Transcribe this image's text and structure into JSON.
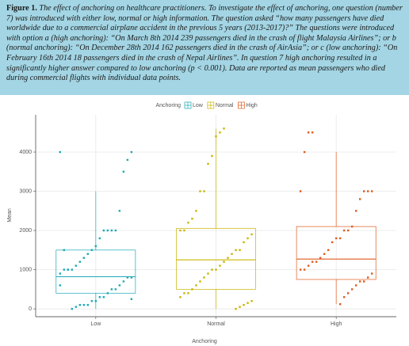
{
  "caption": {
    "label": "Figure 1.",
    "text": "The effect of anchoring on healthcare practitioners. To investigate the effect of anchoring, one question (number 7) was introduced with either low, normal or high information. The question asked “how many passengers have died worldwide due to a commercial airplane accident in the previous 5 years (2013-2017)?” The questions were introduced with option a (high anchoring): “On March 8th 2014 239 passengers died in the crash of flight Malaysia Airlines”; or b (normal anchoring): “On December 28th 2014 162 passengers died in the crash of AirAsia”; or c (low anchoring): “On February 16th 2014 18 passengers died in the crash of Nepal Airlines”. In question 7 high anchoring resulted in a significantly higher answer compared to low anchoring (p < 0.001). Data are reported as mean passengers who died during commercial flights with individual data points."
  },
  "chart_data": {
    "type": "box",
    "x_label": "Anchoring",
    "y_label": "Mean",
    "legend_title": "Anchoring",
    "legend": "top",
    "categories": [
      "Low",
      "Normal",
      "High"
    ],
    "ylim": [
      -200,
      4950
    ],
    "yticks": [
      0,
      1000,
      2000,
      3000,
      4000
    ],
    "grid": true,
    "series": [
      {
        "name": "Low",
        "color": "#1aa9b5",
        "whisker_low": 0,
        "q1": 400,
        "median": 820,
        "q3": 1500,
        "whisker_high": 3000,
        "points": [
          4000,
          4000,
          3800,
          3500,
          2500,
          2000,
          2000,
          2000,
          2000,
          1800,
          1600,
          1500,
          1400,
          1300,
          1200,
          1100,
          1000,
          1000,
          1000,
          900,
          800,
          800,
          700,
          600,
          500,
          500,
          400,
          300,
          300,
          200,
          200,
          100,
          100,
          100,
          50,
          0,
          1000,
          1500,
          600,
          250
        ]
      },
      {
        "name": "Normal",
        "color": "#c8b400",
        "whisker_low": 0,
        "q1": 500,
        "median": 1250,
        "q3": 2050,
        "whisker_high": 4600,
        "points": [
          4600,
          4500,
          4400,
          3900,
          3700,
          3000,
          3000,
          2500,
          2300,
          2200,
          2000,
          2000,
          1900,
          1800,
          1700,
          1500,
          1500,
          1400,
          1300,
          1200,
          1100,
          1000,
          1000,
          900,
          800,
          700,
          600,
          500,
          400,
          400,
          300,
          200,
          150,
          100,
          50,
          0
        ]
      },
      {
        "name": "High",
        "color": "#e05a1b",
        "whisker_low": 120,
        "q1": 750,
        "median": 1270,
        "q3": 2100,
        "whisker_high": 4000,
        "points": [
          4500,
          4500,
          4000,
          3000,
          3000,
          3000,
          3000,
          2800,
          2500,
          2100,
          2000,
          2000,
          1800,
          1800,
          1700,
          1500,
          1400,
          1300,
          1200,
          1200,
          1100,
          1000,
          1000,
          900,
          800,
          700,
          700,
          600,
          500,
          400,
          300,
          120
        ]
      }
    ]
  }
}
